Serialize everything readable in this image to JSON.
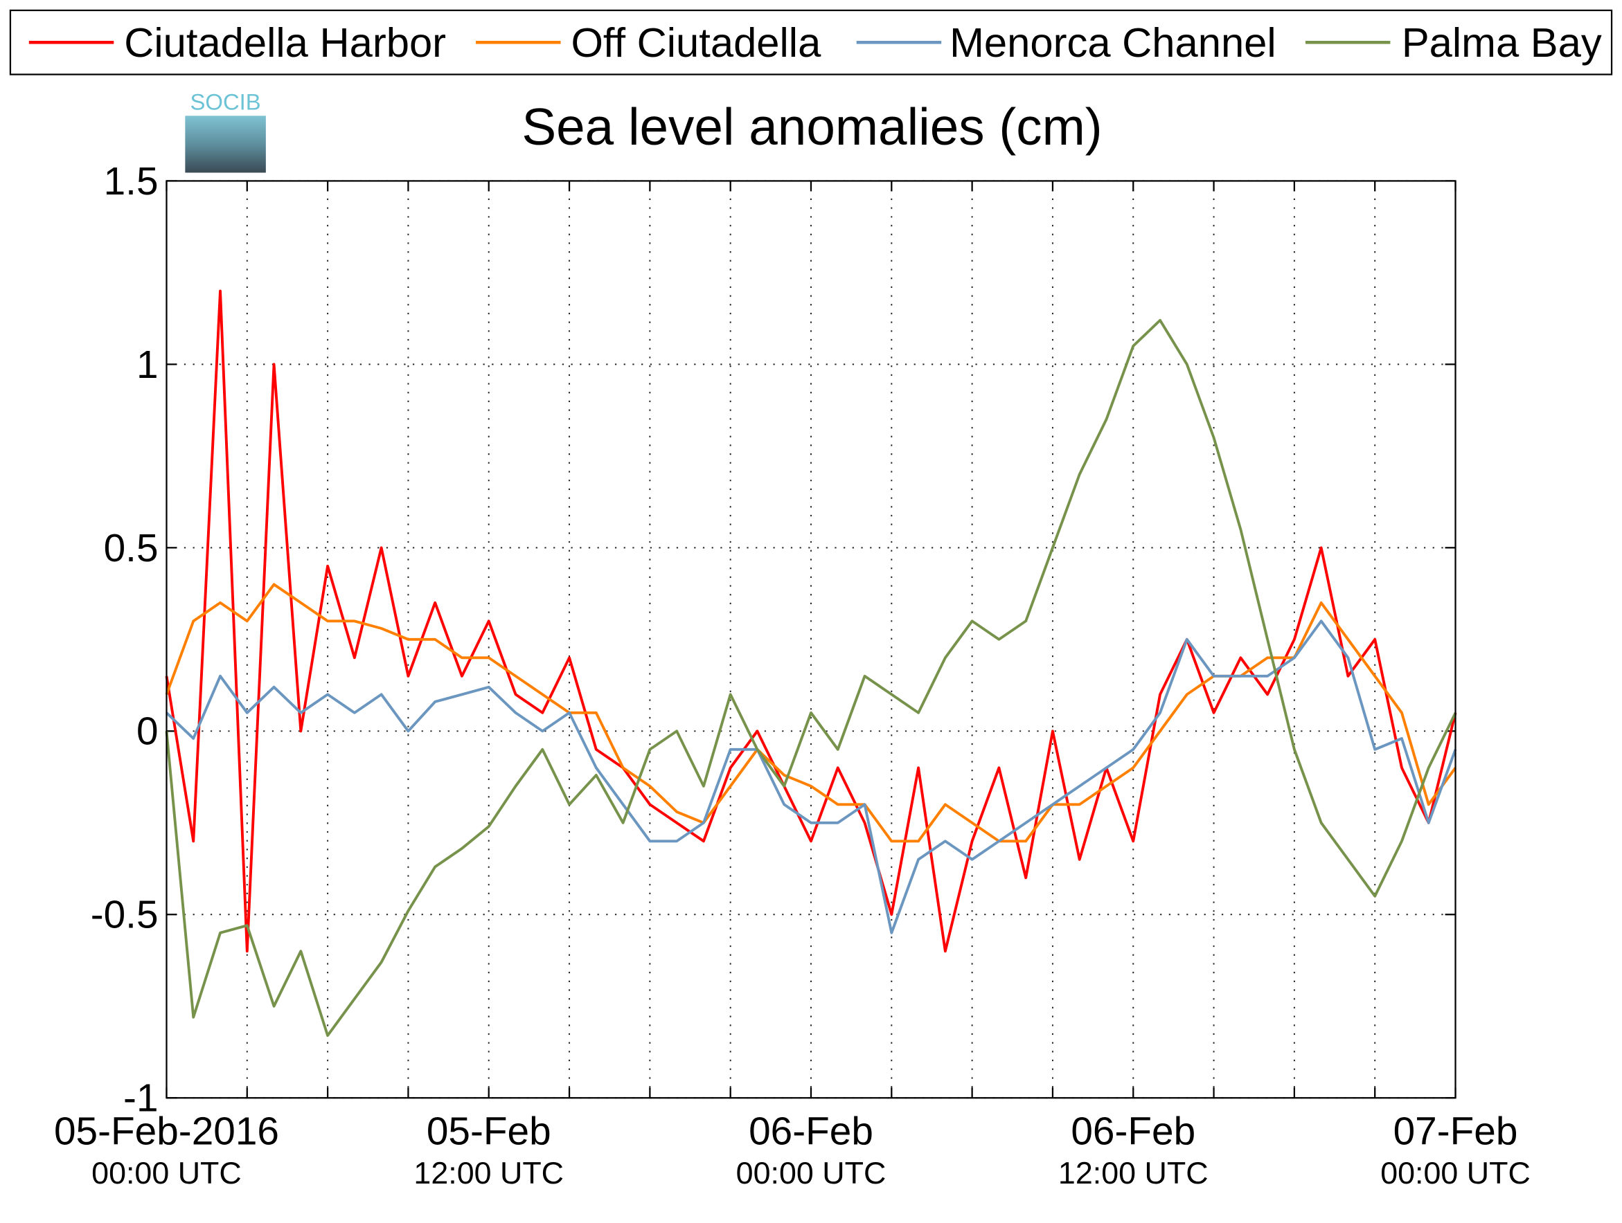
{
  "chart_data": {
    "type": "line",
    "title": "Sea level anomalies (cm)",
    "logo": "SOCIB",
    "x": [
      0,
      1,
      2,
      3,
      4,
      5,
      6,
      7,
      8,
      9,
      10,
      11,
      12,
      13,
      14,
      15,
      16,
      17,
      18,
      19,
      20,
      21,
      22,
      23,
      24,
      25,
      26,
      27,
      28,
      29,
      30,
      31,
      32,
      33,
      34,
      35,
      36,
      37,
      38,
      39,
      40,
      41,
      42,
      43,
      44,
      45,
      46,
      47,
      48
    ],
    "xlim": [
      0,
      48
    ],
    "xticks": [
      {
        "value": 0,
        "label": [
          "05-Feb-2016",
          "00:00 UTC"
        ]
      },
      {
        "value": 3
      },
      {
        "value": 6
      },
      {
        "value": 9
      },
      {
        "value": 12,
        "label": [
          "05-Feb",
          "12:00 UTC"
        ]
      },
      {
        "value": 15
      },
      {
        "value": 18
      },
      {
        "value": 21
      },
      {
        "value": 24,
        "label": [
          "06-Feb",
          "00:00 UTC"
        ]
      },
      {
        "value": 27
      },
      {
        "value": 30
      },
      {
        "value": 33
      },
      {
        "value": 36,
        "label": [
          "06-Feb",
          "12:00 UTC"
        ]
      },
      {
        "value": 39
      },
      {
        "value": 42
      },
      {
        "value": 45
      },
      {
        "value": 48,
        "label": [
          "07-Feb",
          "00:00 UTC"
        ]
      }
    ],
    "ylim": [
      -1,
      1.5
    ],
    "yticks": [
      -1,
      -0.5,
      0,
      0.5,
      1,
      1.5
    ],
    "grid": true,
    "legend": "top",
    "series": [
      {
        "name": "Ciutadella Harbor",
        "color": "#ff0000",
        "values": [
          0.15,
          -0.3,
          1.2,
          -0.6,
          1.0,
          0.0,
          0.45,
          0.2,
          0.5,
          0.15,
          0.35,
          0.15,
          0.3,
          0.1,
          0.05,
          0.2,
          -0.05,
          -0.1,
          -0.2,
          -0.25,
          -0.3,
          -0.1,
          0.0,
          -0.15,
          -0.3,
          -0.1,
          -0.25,
          -0.5,
          -0.1,
          -0.6,
          -0.3,
          -0.1,
          -0.4,
          0.0,
          -0.35,
          -0.1,
          -0.3,
          0.1,
          0.25,
          0.05,
          0.2,
          0.1,
          0.25,
          0.5,
          0.15,
          0.25,
          -0.1,
          -0.25,
          0.05
        ]
      },
      {
        "name": "Off Ciutadella",
        "color": "#ff8000",
        "values": [
          0.1,
          0.3,
          0.35,
          0.3,
          0.4,
          0.35,
          0.3,
          0.3,
          0.28,
          0.25,
          0.25,
          0.2,
          0.2,
          0.15,
          0.1,
          0.05,
          0.05,
          -0.1,
          -0.15,
          -0.22,
          -0.25,
          -0.15,
          -0.05,
          -0.12,
          -0.15,
          -0.2,
          -0.2,
          -0.3,
          -0.3,
          -0.2,
          -0.25,
          -0.3,
          -0.3,
          -0.2,
          -0.2,
          -0.15,
          -0.1,
          0.0,
          0.1,
          0.15,
          0.15,
          0.2,
          0.2,
          0.35,
          0.25,
          0.15,
          0.05,
          -0.2,
          -0.1
        ]
      },
      {
        "name": "Menorca Channel",
        "color": "#6a96c0",
        "values": [
          0.05,
          -0.02,
          0.15,
          0.05,
          0.12,
          0.05,
          0.1,
          0.05,
          0.1,
          0.0,
          0.08,
          0.1,
          0.12,
          0.05,
          0.0,
          0.05,
          -0.1,
          -0.2,
          -0.3,
          -0.3,
          -0.25,
          -0.05,
          -0.05,
          -0.2,
          -0.25,
          -0.25,
          -0.2,
          -0.55,
          -0.35,
          -0.3,
          -0.35,
          -0.3,
          -0.25,
          -0.2,
          -0.15,
          -0.1,
          -0.05,
          0.05,
          0.25,
          0.15,
          0.15,
          0.15,
          0.2,
          0.3,
          0.2,
          -0.05,
          -0.02,
          -0.25,
          -0.05
        ]
      },
      {
        "name": "Palma Bay",
        "color": "#77924a",
        "values": [
          0.0,
          -0.78,
          -0.55,
          -0.53,
          -0.75,
          -0.6,
          -0.83,
          -0.73,
          -0.63,
          -0.49,
          -0.37,
          -0.32,
          -0.26,
          -0.15,
          -0.05,
          -0.2,
          -0.12,
          -0.25,
          -0.05,
          0.0,
          -0.15,
          0.1,
          -0.05,
          -0.15,
          0.05,
          -0.05,
          0.15,
          0.1,
          0.05,
          0.2,
          0.3,
          0.25,
          0.3,
          0.5,
          0.7,
          0.85,
          1.05,
          1.12,
          1.0,
          0.8,
          0.55,
          0.25,
          -0.05,
          -0.25,
          -0.35,
          -0.45,
          -0.3,
          -0.1,
          0.05
        ]
      }
    ]
  }
}
